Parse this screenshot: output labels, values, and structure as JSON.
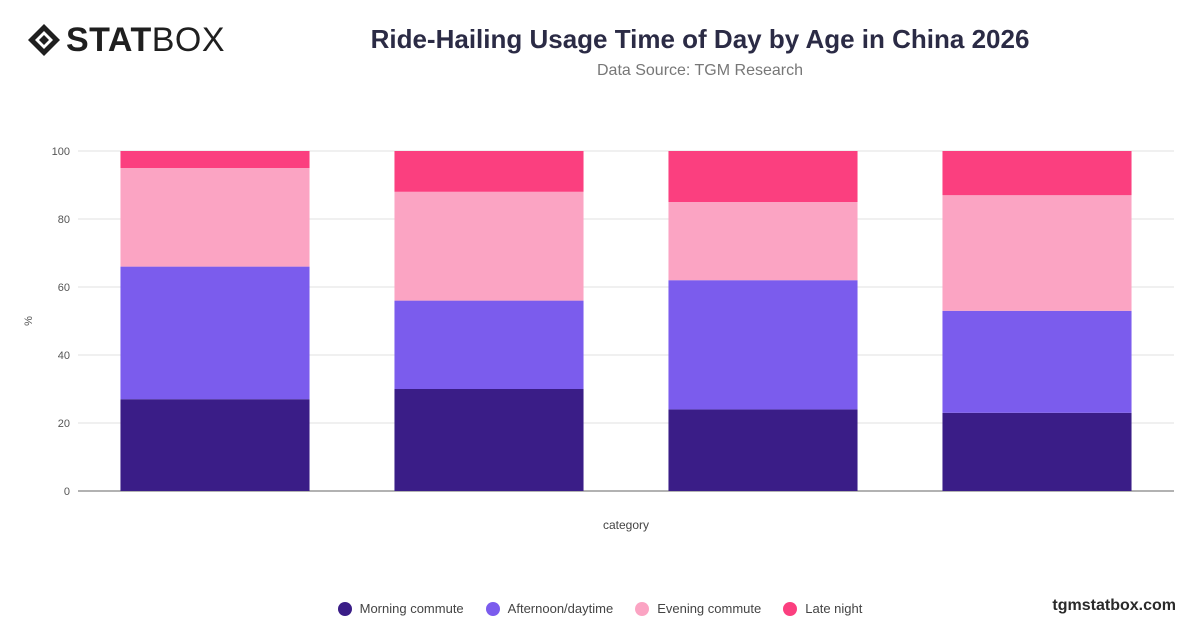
{
  "brand": {
    "logo_bold": "STAT",
    "logo_light": "BOX",
    "url": "tgmstatbox.com"
  },
  "header": {
    "title": "Ride-Hailing Usage Time of Day by Age in China 2026",
    "subtitle": "Data Source: TGM Research"
  },
  "chart_data": {
    "type": "bar",
    "stacked": true,
    "title": "Ride-Hailing Usage Time of Day by Age in China 2026",
    "subtitle": "Data Source: TGM Research",
    "xlabel": "category",
    "ylabel": "%",
    "ylim": [
      0,
      100
    ],
    "yticks": [
      0,
      20,
      40,
      60,
      80,
      100
    ],
    "grid": true,
    "legend_position": "bottom",
    "categories": [
      "",
      "",
      "",
      ""
    ],
    "series": [
      {
        "name": "Morning commute",
        "color": "#3a1d87",
        "values": [
          27,
          30,
          24,
          23
        ]
      },
      {
        "name": "Afternoon/daytime",
        "color": "#7b5ced",
        "values": [
          39,
          26,
          38,
          30
        ]
      },
      {
        "name": "Evening commute",
        "color": "#fba4c3",
        "values": [
          29,
          32,
          23,
          34
        ]
      },
      {
        "name": "Late night",
        "color": "#fb3f7f",
        "values": [
          5,
          12,
          15,
          13
        ]
      }
    ]
  }
}
